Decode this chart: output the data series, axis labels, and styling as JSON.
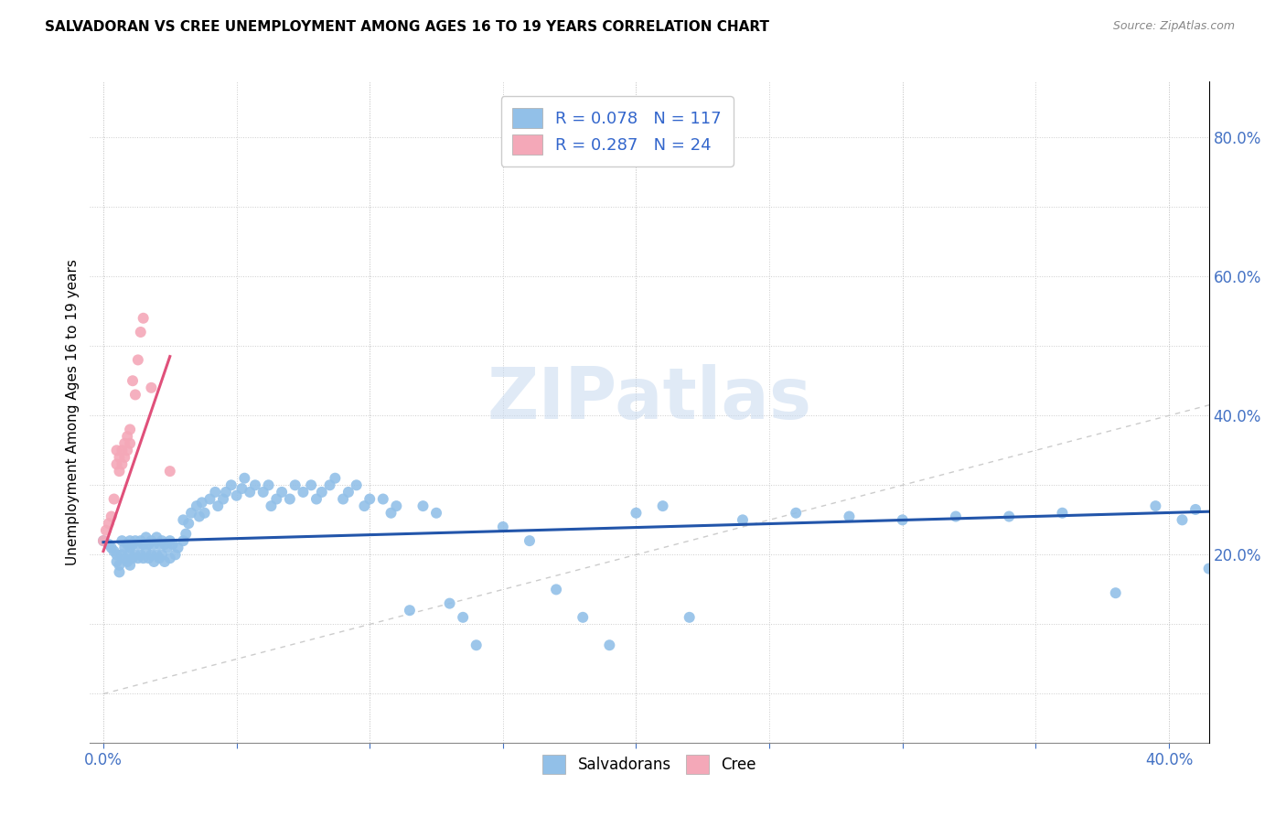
{
  "title": "SALVADORAN VS CREE UNEMPLOYMENT AMONG AGES 16 TO 19 YEARS CORRELATION CHART",
  "source": "Source: ZipAtlas.com",
  "ylabel": "Unemployment Among Ages 16 to 19 years",
  "xlim": [
    -0.005,
    0.415
  ],
  "ylim": [
    -0.07,
    0.88
  ],
  "salvadoran_color": "#92c0e8",
  "cree_color": "#f4a8b8",
  "trend_salvadoran_color": "#2255aa",
  "trend_cree_color": "#e0507a",
  "diagonal_color": "#cccccc",
  "R_salvadoran": 0.078,
  "N_salvadoran": 117,
  "R_cree": 0.287,
  "N_cree": 24,
  "legend_label_salvadoran": "Salvadorans",
  "legend_label_cree": "Cree",
  "watermark": "ZIPatlas",
  "salvadoran_x": [
    0.0,
    0.002,
    0.003,
    0.004,
    0.005,
    0.005,
    0.006,
    0.006,
    0.007,
    0.007,
    0.008,
    0.008,
    0.009,
    0.009,
    0.01,
    0.01,
    0.01,
    0.01,
    0.011,
    0.011,
    0.012,
    0.012,
    0.013,
    0.013,
    0.014,
    0.014,
    0.015,
    0.015,
    0.016,
    0.016,
    0.017,
    0.017,
    0.018,
    0.018,
    0.019,
    0.019,
    0.02,
    0.02,
    0.021,
    0.021,
    0.022,
    0.022,
    0.023,
    0.023,
    0.024,
    0.025,
    0.025,
    0.026,
    0.027,
    0.028,
    0.03,
    0.03,
    0.031,
    0.032,
    0.033,
    0.035,
    0.036,
    0.037,
    0.038,
    0.04,
    0.042,
    0.043,
    0.045,
    0.046,
    0.048,
    0.05,
    0.052,
    0.053,
    0.055,
    0.057,
    0.06,
    0.062,
    0.063,
    0.065,
    0.067,
    0.07,
    0.072,
    0.075,
    0.078,
    0.08,
    0.082,
    0.085,
    0.087,
    0.09,
    0.092,
    0.095,
    0.098,
    0.1,
    0.105,
    0.108,
    0.11,
    0.115,
    0.12,
    0.125,
    0.13,
    0.135,
    0.14,
    0.15,
    0.16,
    0.17,
    0.18,
    0.19,
    0.2,
    0.21,
    0.22,
    0.24,
    0.26,
    0.28,
    0.3,
    0.32,
    0.34,
    0.36,
    0.38,
    0.395,
    0.405,
    0.41,
    0.415
  ],
  "salvadoran_y": [
    0.22,
    0.215,
    0.21,
    0.205,
    0.2,
    0.19,
    0.185,
    0.175,
    0.22,
    0.2,
    0.21,
    0.195,
    0.215,
    0.19,
    0.22,
    0.21,
    0.2,
    0.185,
    0.215,
    0.195,
    0.22,
    0.2,
    0.215,
    0.195,
    0.22,
    0.2,
    0.215,
    0.195,
    0.225,
    0.205,
    0.215,
    0.195,
    0.22,
    0.2,
    0.215,
    0.19,
    0.225,
    0.2,
    0.215,
    0.195,
    0.22,
    0.2,
    0.215,
    0.19,
    0.21,
    0.22,
    0.195,
    0.215,
    0.2,
    0.21,
    0.25,
    0.22,
    0.23,
    0.245,
    0.26,
    0.27,
    0.255,
    0.275,
    0.26,
    0.28,
    0.29,
    0.27,
    0.28,
    0.29,
    0.3,
    0.285,
    0.295,
    0.31,
    0.29,
    0.3,
    0.29,
    0.3,
    0.27,
    0.28,
    0.29,
    0.28,
    0.3,
    0.29,
    0.3,
    0.28,
    0.29,
    0.3,
    0.31,
    0.28,
    0.29,
    0.3,
    0.27,
    0.28,
    0.28,
    0.26,
    0.27,
    0.12,
    0.27,
    0.26,
    0.13,
    0.11,
    0.07,
    0.24,
    0.22,
    0.15,
    0.11,
    0.07,
    0.26,
    0.27,
    0.11,
    0.25,
    0.26,
    0.255,
    0.25,
    0.255,
    0.255,
    0.26,
    0.145,
    0.27,
    0.25,
    0.265,
    0.18
  ],
  "cree_x": [
    0.0,
    0.001,
    0.002,
    0.003,
    0.004,
    0.005,
    0.005,
    0.006,
    0.006,
    0.007,
    0.007,
    0.008,
    0.008,
    0.009,
    0.009,
    0.01,
    0.01,
    0.011,
    0.012,
    0.013,
    0.014,
    0.015,
    0.018,
    0.025
  ],
  "cree_y": [
    0.22,
    0.235,
    0.245,
    0.255,
    0.28,
    0.35,
    0.33,
    0.34,
    0.32,
    0.35,
    0.33,
    0.36,
    0.34,
    0.37,
    0.35,
    0.38,
    0.36,
    0.45,
    0.43,
    0.48,
    0.52,
    0.54,
    0.44,
    0.32
  ],
  "trend_sal_x0": 0.0,
  "trend_sal_x1": 0.415,
  "trend_sal_y0": 0.218,
  "trend_sal_y1": 0.262,
  "trend_cree_x0": 0.0,
  "trend_cree_x1": 0.025,
  "trend_cree_y0": 0.205,
  "trend_cree_y1": 0.485
}
